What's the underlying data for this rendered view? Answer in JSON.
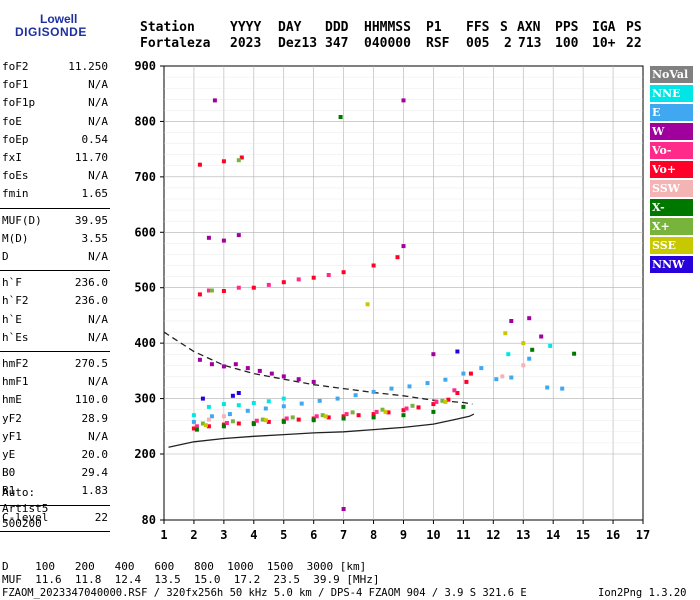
{
  "logo": {
    "line1": "Lowell",
    "line2": "DIGISONDE"
  },
  "header": {
    "labels": [
      "Station",
      "YYYY",
      "DAY",
      "DDD",
      "HHMMSS",
      "P1",
      "FFS",
      "S",
      "AXN",
      "PPS",
      "IGA",
      "PS"
    ],
    "values": [
      "Fortaleza",
      "2023",
      "Dez13",
      "347",
      "040000",
      "RSF",
      "005",
      "2",
      "713",
      "100",
      "10+",
      "22"
    ]
  },
  "params": [
    {
      "group": 1,
      "name": "foF2",
      "value": "11.250"
    },
    {
      "group": 1,
      "name": "foF1",
      "value": "N/A"
    },
    {
      "group": 1,
      "name": "foF1p",
      "value": "N/A"
    },
    {
      "group": 1,
      "name": "foE",
      "value": "N/A"
    },
    {
      "group": 1,
      "name": "foEp",
      "value": "0.54"
    },
    {
      "group": 1,
      "name": "fxI",
      "value": "11.70"
    },
    {
      "group": 1,
      "name": "foEs",
      "value": "N/A"
    },
    {
      "group": 1,
      "name": "fmin",
      "value": "1.65"
    },
    {
      "group": 2,
      "name": "MUF(D)",
      "value": "39.95"
    },
    {
      "group": 2,
      "name": "M(D)",
      "value": "3.55"
    },
    {
      "group": 2,
      "name": "D",
      "value": "N/A"
    },
    {
      "group": 3,
      "name": "h`F",
      "value": "236.0"
    },
    {
      "group": 3,
      "name": "h`F2",
      "value": "236.0"
    },
    {
      "group": 3,
      "name": "h`E",
      "value": "N/A"
    },
    {
      "group": 3,
      "name": "h`Es",
      "value": "N/A"
    },
    {
      "group": 4,
      "name": "hmF2",
      "value": "270.5"
    },
    {
      "group": 4,
      "name": "hmF1",
      "value": "N/A"
    },
    {
      "group": 4,
      "name": "hmE",
      "value": "110.0"
    },
    {
      "group": 4,
      "name": "yF2",
      "value": "28.9"
    },
    {
      "group": 4,
      "name": "yF1",
      "value": "N/A"
    },
    {
      "group": 4,
      "name": "yE",
      "value": "20.0"
    },
    {
      "group": 4,
      "name": "B0",
      "value": "29.4"
    },
    {
      "group": 4,
      "name": "B1",
      "value": "1.83"
    },
    {
      "group": 5,
      "name": "C-level",
      "value": "22"
    }
  ],
  "autoscaling": {
    "auto": "Auto:",
    "artist": "Artist5",
    "code": "500200"
  },
  "legend": [
    {
      "label": "NoVal",
      "color": "#808080"
    },
    {
      "label": "NNE",
      "color": "#00e6e6"
    },
    {
      "label": "E",
      "color": "#40a8f0"
    },
    {
      "label": "W",
      "color": "#a0009c"
    },
    {
      "label": "Vo-",
      "color": "#ff2a8a"
    },
    {
      "label": "Vo+",
      "color": "#ff0028"
    },
    {
      "label": "SSW",
      "color": "#f4b4b4"
    },
    {
      "label": "X-",
      "color": "#007800"
    },
    {
      "label": "X+",
      "color": "#78b43c"
    },
    {
      "label": "SSE",
      "color": "#c8c800"
    },
    {
      "label": "NNW",
      "color": "#2800dc"
    }
  ],
  "footer": {
    "distance_label": "D",
    "distances": [
      "100",
      "200",
      "400",
      "600",
      "800",
      "1000",
      "1500",
      "3000"
    ],
    "distance_unit": "[km]",
    "muf_label": "MUF",
    "mufs": [
      "11.6",
      "11.8",
      "12.4",
      "13.5",
      "15.0",
      "17.2",
      "23.5",
      "39.9"
    ],
    "muf_unit": "[MHz]",
    "info": "FZAOM_2023347040000.RSF / 320fx256h 50 kHz 5.0 km / DPS-4 FZAOM 904 / 3.9 S 321.6 E",
    "version": "Ion2Png 1.3.20"
  },
  "chart_data": {
    "type": "scatter",
    "title": "",
    "xlabel": "",
    "ylabel": "",
    "xlim": [
      1,
      17
    ],
    "ylim": [
      80,
      900
    ],
    "xticks": [
      1,
      2,
      3,
      4,
      5,
      6,
      7,
      8,
      9,
      10,
      11,
      12,
      13,
      14,
      15,
      16,
      17
    ],
    "yticks": [
      80,
      200,
      300,
      400,
      500,
      600,
      700,
      800,
      900
    ],
    "grid": true,
    "legend_position": "right",
    "series": [
      {
        "name": "E",
        "color": "#40a8f0",
        "points": [
          [
            2.0,
            258
          ],
          [
            2.6,
            268
          ],
          [
            3.2,
            272
          ],
          [
            3.8,
            278
          ],
          [
            4.4,
            282
          ],
          [
            5.0,
            286
          ],
          [
            5.6,
            291
          ],
          [
            6.2,
            296
          ],
          [
            6.8,
            300
          ],
          [
            7.4,
            306
          ],
          [
            8.0,
            312
          ],
          [
            8.6,
            318
          ],
          [
            9.2,
            322
          ],
          [
            9.8,
            328
          ],
          [
            10.4,
            334
          ],
          [
            11.0,
            345
          ],
          [
            11.6,
            355
          ],
          [
            12.1,
            335
          ],
          [
            12.6,
            338
          ],
          [
            13.2,
            372
          ],
          [
            13.8,
            320
          ],
          [
            14.3,
            318
          ]
        ]
      },
      {
        "name": "Vo+",
        "color": "#ff0028",
        "points": [
          [
            2.0,
            246
          ],
          [
            2.5,
            250
          ],
          [
            3.0,
            253
          ],
          [
            3.5,
            255
          ],
          [
            4.0,
            256
          ],
          [
            4.5,
            258
          ],
          [
            5.0,
            260
          ],
          [
            5.5,
            262
          ],
          [
            6.0,
            264
          ],
          [
            6.5,
            266
          ],
          [
            7.0,
            268
          ],
          [
            7.5,
            270
          ],
          [
            8.0,
            272
          ],
          [
            8.5,
            275
          ],
          [
            9.0,
            279
          ],
          [
            9.5,
            284
          ],
          [
            10.0,
            290
          ],
          [
            10.5,
            298
          ],
          [
            10.8,
            310
          ],
          [
            11.1,
            330
          ],
          [
            11.25,
            345
          ],
          [
            2.2,
            488
          ],
          [
            3.0,
            494
          ],
          [
            4.0,
            500
          ],
          [
            5.0,
            510
          ],
          [
            6.0,
            518
          ],
          [
            7.0,
            528
          ],
          [
            8.0,
            540
          ],
          [
            8.8,
            555
          ],
          [
            2.2,
            722
          ],
          [
            3.0,
            728
          ],
          [
            3.6,
            735
          ]
        ]
      },
      {
        "name": "Vo-",
        "color": "#ff2a8a",
        "points": [
          [
            2.1,
            250
          ],
          [
            3.1,
            256
          ],
          [
            4.1,
            260
          ],
          [
            5.1,
            264
          ],
          [
            6.1,
            268
          ],
          [
            7.1,
            272
          ],
          [
            8.1,
            276
          ],
          [
            9.1,
            282
          ],
          [
            10.1,
            294
          ],
          [
            10.7,
            315
          ],
          [
            2.5,
            495
          ],
          [
            3.5,
            500
          ],
          [
            4.5,
            505
          ],
          [
            5.5,
            515
          ],
          [
            6.5,
            523
          ]
        ]
      },
      {
        "name": "W",
        "color": "#a0009c",
        "points": [
          [
            2.2,
            370
          ],
          [
            2.6,
            362
          ],
          [
            3.0,
            358
          ],
          [
            3.4,
            362
          ],
          [
            3.8,
            355
          ],
          [
            4.2,
            350
          ],
          [
            4.6,
            345
          ],
          [
            5.0,
            340
          ],
          [
            5.5,
            335
          ],
          [
            6.0,
            330
          ],
          [
            2.5,
            590
          ],
          [
            3.0,
            585
          ],
          [
            3.5,
            595
          ],
          [
            9.0,
            575
          ],
          [
            10.0,
            380
          ],
          [
            12.6,
            440
          ],
          [
            13.2,
            445
          ],
          [
            13.6,
            412
          ],
          [
            7.0,
            100
          ],
          [
            2.7,
            838
          ],
          [
            9.0,
            838
          ]
        ]
      },
      {
        "name": "NNE",
        "color": "#00e6e6",
        "points": [
          [
            2.0,
            270
          ],
          [
            2.5,
            285
          ],
          [
            3.0,
            290
          ],
          [
            3.5,
            288
          ],
          [
            4.0,
            292
          ],
          [
            4.5,
            295
          ],
          [
            5.0,
            300
          ],
          [
            13.9,
            395
          ],
          [
            12.5,
            380
          ]
        ]
      },
      {
        "name": "X-",
        "color": "#007800",
        "points": [
          [
            2.1,
            244
          ],
          [
            3.0,
            250
          ],
          [
            4.0,
            254
          ],
          [
            5.0,
            258
          ],
          [
            6.0,
            261
          ],
          [
            7.0,
            264
          ],
          [
            8.0,
            266
          ],
          [
            9.0,
            270
          ],
          [
            10.0,
            276
          ],
          [
            11.0,
            285
          ],
          [
            13.3,
            388
          ],
          [
            14.7,
            381
          ],
          [
            6.9,
            808
          ]
        ]
      },
      {
        "name": "X+",
        "color": "#78b43c",
        "points": [
          [
            2.3,
            255
          ],
          [
            3.3,
            259
          ],
          [
            4.3,
            262
          ],
          [
            5.3,
            266
          ],
          [
            6.3,
            270
          ],
          [
            7.3,
            275
          ],
          [
            8.3,
            280
          ],
          [
            9.3,
            287
          ],
          [
            10.3,
            296
          ],
          [
            2.6,
            495
          ],
          [
            3.5,
            730
          ]
        ]
      },
      {
        "name": "SSE",
        "color": "#c8c800",
        "points": [
          [
            2.4,
            252
          ],
          [
            4.4,
            261
          ],
          [
            6.4,
            268
          ],
          [
            8.4,
            276
          ],
          [
            10.4,
            294
          ],
          [
            7.8,
            470
          ],
          [
            12.4,
            418
          ],
          [
            13.0,
            400
          ]
        ]
      },
      {
        "name": "NNW",
        "color": "#2800dc",
        "points": [
          [
            2.3,
            300
          ],
          [
            3.3,
            305
          ],
          [
            3.5,
            310
          ],
          [
            10.8,
            385
          ]
        ]
      },
      {
        "name": "SSW",
        "color": "#f4b4b4",
        "points": [
          [
            2.5,
            262
          ],
          [
            3.0,
            268
          ],
          [
            12.3,
            340
          ],
          [
            13.0,
            360
          ]
        ]
      }
    ],
    "lines": [
      {
        "style": "dashed",
        "points": [
          [
            1.0,
            420
          ],
          [
            2.0,
            385
          ],
          [
            3.0,
            360
          ],
          [
            4.0,
            345
          ],
          [
            5.0,
            335
          ],
          [
            6.0,
            325
          ],
          [
            7.0,
            318
          ],
          [
            8.0,
            311
          ],
          [
            9.0,
            305
          ],
          [
            10.0,
            297
          ],
          [
            11.0,
            293
          ],
          [
            11.3,
            290
          ]
        ]
      },
      {
        "style": "solid",
        "points": [
          [
            1.15,
            212
          ],
          [
            2.0,
            222
          ],
          [
            3.0,
            228
          ],
          [
            4.0,
            232
          ],
          [
            5.0,
            235
          ],
          [
            6.0,
            238
          ],
          [
            7.0,
            240
          ],
          [
            8.0,
            244
          ],
          [
            9.0,
            248
          ],
          [
            10.0,
            254
          ],
          [
            10.7,
            262
          ],
          [
            11.2,
            268
          ],
          [
            11.35,
            272
          ]
        ]
      }
    ]
  }
}
